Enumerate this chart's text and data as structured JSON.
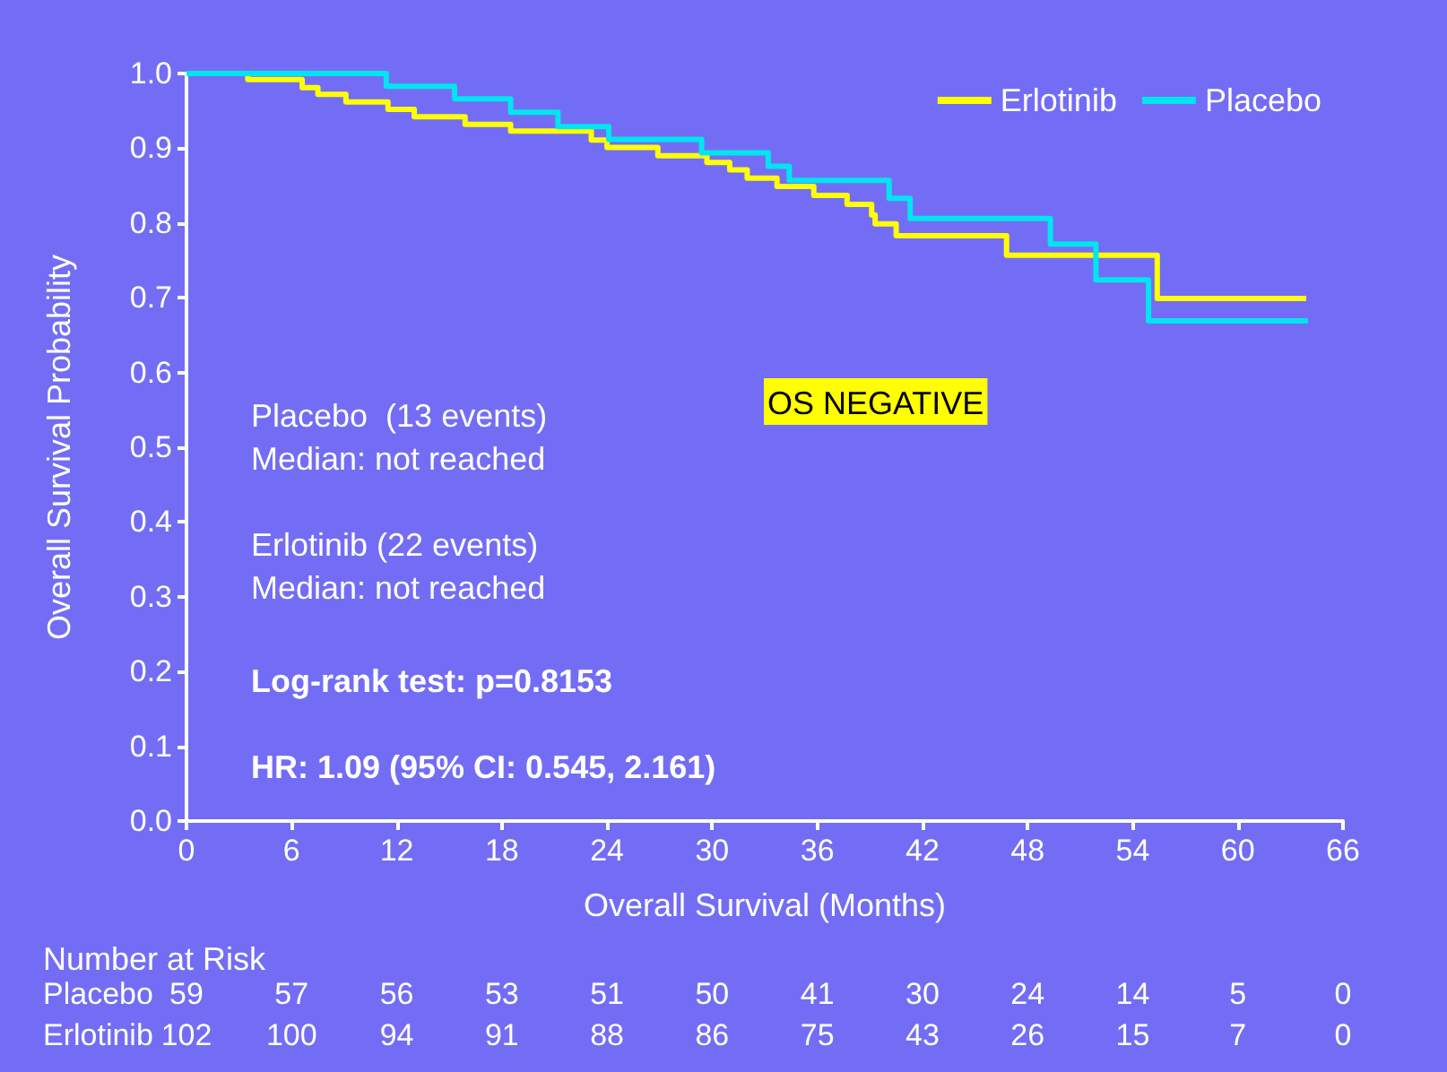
{
  "chart_data": {
    "type": "step",
    "xlabel": "Overall Survival (Months)",
    "ylabel": "Overall Survival Probability",
    "series": [
      {
        "name": "Erlotinib",
        "color": "#ffff00",
        "x": [
          0,
          3.5,
          6.6,
          7.5,
          9.1,
          11.5,
          13.0,
          15.9,
          18.5,
          23.1,
          24.0,
          26.9,
          29.7,
          31.0,
          32.0,
          33.7,
          35.8,
          37.7,
          39.1,
          39.3,
          40.5,
          46.8,
          55.4,
          63.9
        ],
        "values": [
          1.0,
          0.992,
          0.981,
          0.972,
          0.962,
          0.952,
          0.942,
          0.932,
          0.923,
          0.911,
          0.901,
          0.89,
          0.881,
          0.871,
          0.86,
          0.849,
          0.837,
          0.825,
          0.811,
          0.799,
          0.783,
          0.757,
          0.699,
          0.699
        ]
      },
      {
        "name": "Placebo",
        "color": "#00e5f0",
        "x": [
          0,
          11.4,
          15.3,
          18.5,
          21.2,
          24.1,
          29.4,
          33.2,
          34.4,
          40.1,
          41.3,
          49.3,
          51.9,
          54.9,
          64.0
        ],
        "values": [
          1.0,
          0.983,
          0.966,
          0.948,
          0.929,
          0.912,
          0.894,
          0.876,
          0.857,
          0.833,
          0.806,
          0.772,
          0.724,
          0.669,
          0.669
        ]
      }
    ],
    "xlim": [
      0,
      66
    ],
    "xticks": [
      0,
      6,
      12,
      18,
      24,
      30,
      36,
      42,
      48,
      54,
      60,
      66
    ],
    "ylim": [
      0,
      1
    ],
    "yticks": [
      {
        "value": 0,
        "label": "0.0"
      },
      {
        "value": 0.1,
        "label": "0.1"
      },
      {
        "value": 0.2,
        "label": "0.2"
      },
      {
        "value": 0.3,
        "label": "0.3"
      },
      {
        "value": 0.4,
        "label": "0.4"
      },
      {
        "value": 0.5,
        "label": "0.5"
      },
      {
        "value": 0.6,
        "label": "0.6"
      },
      {
        "value": 0.7,
        "label": "0.7"
      },
      {
        "value": 0.8,
        "label": "0.8"
      },
      {
        "value": 0.9,
        "label": "0.9"
      },
      {
        "value": 1,
        "label": "1.0"
      }
    ],
    "grid": false,
    "legend": "top right",
    "marker": "none",
    "line_style": "solid",
    "annotations": [
      "Placebo  (13 events)\nMedian: not reached",
      "Erlotinib (22 events)\nMedian: not reached",
      "Log-rank test: p=0.8153",
      "HR: 1.09 (95% CI: 0.545, 2.161)",
      "OS NEGATIVE",
      "Number at Risk",
      "Placebo 59 57 56 53 51 50 41 30 24 14 5 0",
      "Erlotinib 102 100 94 91 88 86 75 43 26 15 7 0"
    ]
  }
}
